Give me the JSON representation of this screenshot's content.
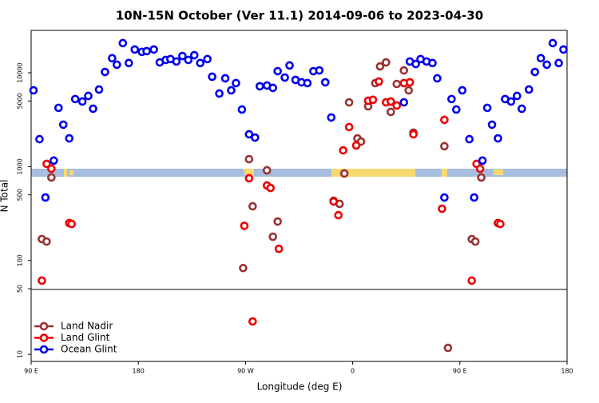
{
  "chart_data": {
    "type": "scatter",
    "title": "10N-15N October (Ver 11.1)   2014-09-06 to 2023-04-30",
    "x_label": "Longitude (deg E)",
    "y_label": "N Total",
    "ylog": true,
    "xlim": [
      90,
      540
    ],
    "ylim": [
      8.4,
      28300
    ],
    "xticks": [
      {
        "value": 90,
        "label": "90 E"
      },
      180,
      {
        "value": 270,
        "label": "90 W"
      },
      {
        "value": 360,
        "label": "0"
      },
      {
        "value": 450,
        "label": "90 E"
      },
      {
        "value": 540,
        "label": "180"
      }
    ],
    "yticks": [
      10,
      50,
      100,
      500,
      1000,
      5000,
      10000
    ],
    "legend": "bottom-left",
    "series": [
      {
        "name": "Land Nadir",
        "color": "#993333",
        "x": [
          99,
          103,
          107,
          122,
          268,
          273,
          276,
          288,
          293,
          297,
          344,
          349,
          353,
          357,
          364,
          367,
          373,
          379,
          383,
          388,
          392,
          397,
          403,
          407,
          411,
          437,
          440,
          460,
          463,
          468,
          482
        ],
        "values": [
          169,
          159,
          766,
          250,
          83,
          1200,
          378,
          914,
          179,
          260,
          433,
          401,
          845,
          4840,
          2000,
          1850,
          4390,
          7760,
          11700,
          12900,
          3830,
          7600,
          10600,
          6500,
          2300,
          1650,
          11.7,
          169,
          159,
          766,
          250
        ]
      },
      {
        "name": "Land Glint",
        "color": "#ee0000",
        "x": [
          99,
          103,
          107,
          122,
          124,
          269,
          273,
          276,
          288,
          291,
          298,
          344,
          348,
          352,
          357,
          363,
          373,
          377,
          382,
          388,
          392,
          397,
          403,
          408,
          411,
          435,
          437,
          460,
          464,
          467,
          482,
          484
        ],
        "values": [
          61,
          1070,
          950,
          250,
          245,
          234,
          751,
          22.4,
          630,
          593,
          133,
          425,
          304,
          1490,
          2640,
          1680,
          5040,
          5150,
          8070,
          4840,
          4940,
          4480,
          7760,
          7920,
          2210,
          356,
          3150,
          61,
          1070,
          950,
          250,
          245
        ]
      },
      {
        "name": "Ocean Glint",
        "color": "#0000ee",
        "x": [
          92,
          97,
          102,
          109,
          113,
          117,
          122,
          127,
          133,
          138,
          142,
          147,
          152,
          158,
          162,
          167,
          172,
          177,
          183,
          187,
          193,
          198,
          203,
          207,
          212,
          217,
          222,
          227,
          232,
          238,
          242,
          248,
          253,
          258,
          262,
          267,
          273,
          278,
          282,
          288,
          293,
          297,
          303,
          307,
          312,
          317,
          322,
          327,
          332,
          337,
          342,
          403,
          408,
          413,
          417,
          422,
          427,
          431,
          437,
          443,
          447,
          452,
          458,
          462,
          469,
          473,
          477,
          482,
          488,
          493,
          498,
          502,
          508,
          513,
          518,
          523,
          528,
          533,
          537
        ],
        "values": [
          6500,
          1960,
          469,
          1160,
          4230,
          2800,
          2000,
          5250,
          4940,
          5670,
          4140,
          6630,
          10200,
          14300,
          12200,
          20700,
          12700,
          17700,
          16700,
          17000,
          17700,
          12900,
          13700,
          14000,
          13200,
          15100,
          13700,
          15400,
          12700,
          14000,
          9080,
          6010,
          8730,
          6500,
          7760,
          4060,
          2210,
          2040,
          7180,
          7320,
          6900,
          10400,
          8900,
          11970,
          8400,
          7920,
          7760,
          10400,
          10600,
          7920,
          3340,
          4840,
          13200,
          12400,
          14000,
          13200,
          12700,
          8730,
          469,
          5250,
          4060,
          6500,
          1960,
          469,
          1160,
          4230,
          2800,
          2000,
          5250,
          4940,
          5670,
          4140,
          6630,
          10200,
          14300,
          12200,
          20700,
          12700,
          17700
        ]
      }
    ]
  }
}
